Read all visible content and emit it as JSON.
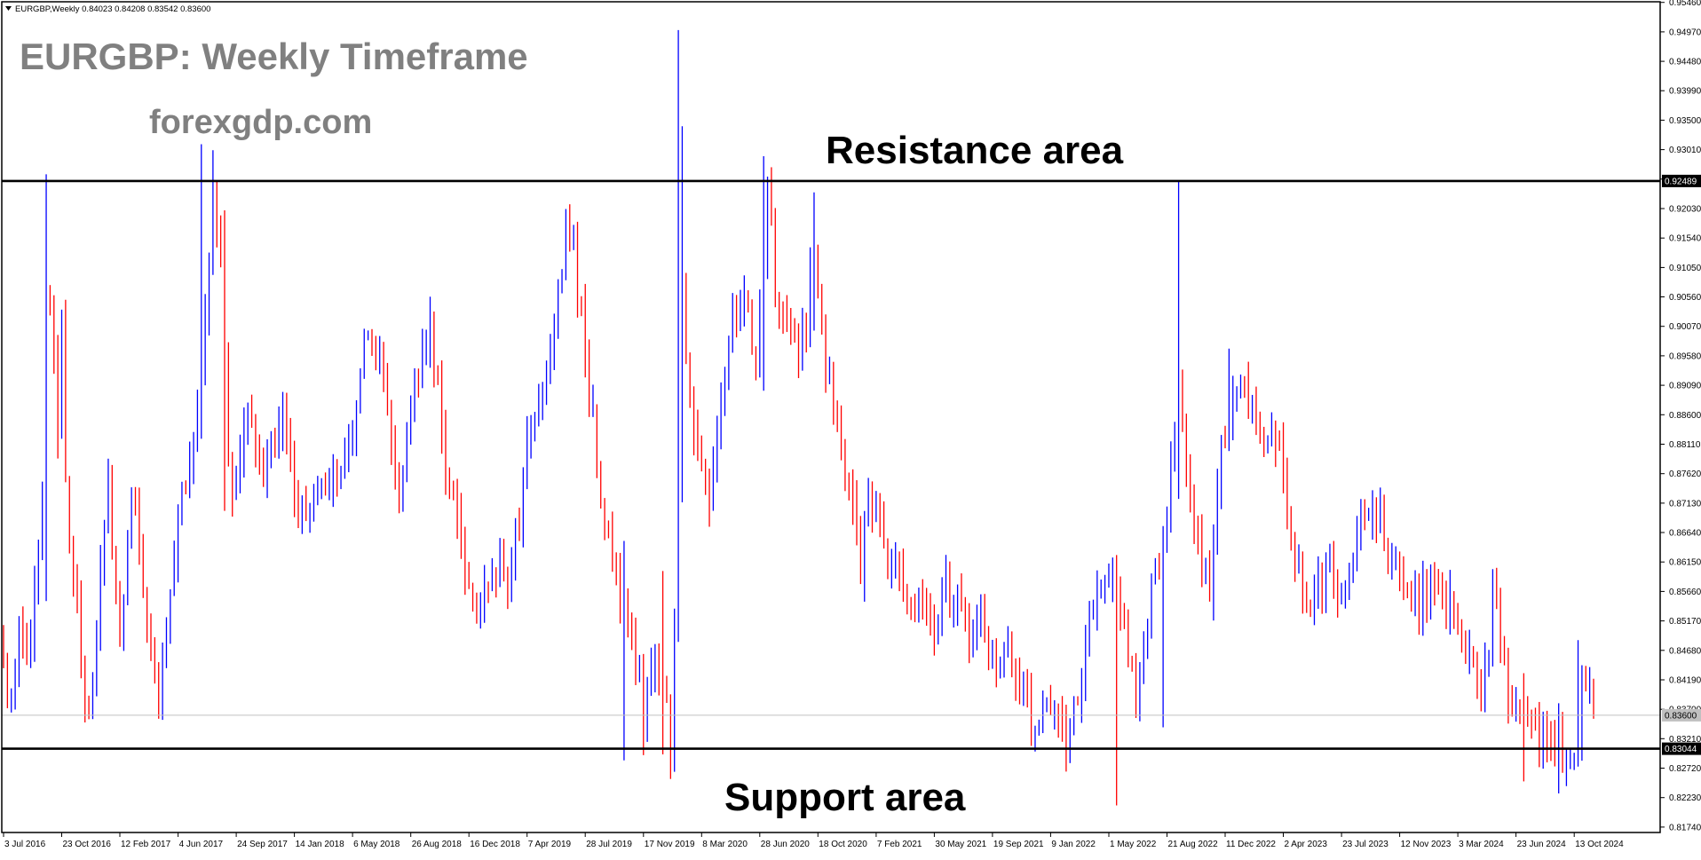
{
  "header": {
    "symbol_line": "EURGBP,Weekly  0.84023 0.84208 0.83542 0.83600"
  },
  "overlay": {
    "title": "EURGBP: Weekly Timeframe",
    "site": "forexgdp.com",
    "resistance_label": "Resistance area",
    "support_label": "Support area"
  },
  "colors": {
    "bull": "#0000ff",
    "bear": "#ff0000",
    "frame": "#000000",
    "overlay_text": "#808080",
    "label_text": "#000000",
    "price_line": "#c0c0c0"
  },
  "chart_data": {
    "type": "candlestick",
    "title": "EURGBP: Weekly Timeframe",
    "xlabel": "",
    "ylabel": "",
    "ylim": [
      0.8165,
      0.9547
    ],
    "y_ticks": [
      "0.95460",
      "0.94970",
      "0.94480",
      "0.93990",
      "0.93500",
      "0.93010",
      "0.92520",
      "0.92030",
      "0.91540",
      "0.91050",
      "0.90560",
      "0.90070",
      "0.89580",
      "0.89090",
      "0.88600",
      "0.88110",
      "0.87620",
      "0.87130",
      "0.86640",
      "0.86150",
      "0.85660",
      "0.85170",
      "0.84680",
      "0.84190",
      "0.83700",
      "0.83210",
      "0.82720",
      "0.82230",
      "0.81740"
    ],
    "x_ticks": [
      "3 Jul 2016",
      "23 Oct 2016",
      "12 Feb 2017",
      "4 Jun 2017",
      "24 Sep 2017",
      "14 Jan 2018",
      "6 May 2018",
      "26 Aug 2018",
      "16 Dec 2018",
      "7 Apr 2019",
      "28 Jul 2019",
      "17 Nov 2019",
      "8 Mar 2020",
      "28 Jun 2020",
      "18 Oct 2020",
      "7 Feb 2021",
      "30 May 2021",
      "19 Sep 2021",
      "9 Jan 2022",
      "1 May 2022",
      "21 Aug 2022",
      "11 Dec 2022",
      "2 Apr 2023",
      "23 Jul 2023",
      "12 Nov 2023",
      "3 Mar 2024",
      "23 Jun 2024",
      "13 Oct 2024"
    ],
    "levels": [
      {
        "name": "Resistance area",
        "value": 0.92489,
        "label": "0.92489"
      },
      {
        "name": "Support area",
        "value": 0.83044,
        "label": "0.83044"
      }
    ],
    "current_price": {
      "value": 0.836,
      "label": "0.83600"
    },
    "price_path": [
      [
        0,
        0.845
      ],
      [
        2,
        0.838
      ],
      [
        4,
        0.852
      ],
      [
        6,
        0.845
      ],
      [
        8,
        0.858
      ],
      [
        10,
        0.87
      ],
      [
        11,
        0.91
      ],
      [
        12,
        0.902
      ],
      [
        14,
        0.885
      ],
      [
        15,
        0.9
      ],
      [
        16,
        0.875
      ],
      [
        18,
        0.862
      ],
      [
        20,
        0.845
      ],
      [
        22,
        0.836
      ],
      [
        23,
        0.842
      ],
      [
        25,
        0.86
      ],
      [
        27,
        0.872
      ],
      [
        29,
        0.86
      ],
      [
        30,
        0.85
      ],
      [
        32,
        0.866
      ],
      [
        34,
        0.874
      ],
      [
        35,
        0.86
      ],
      [
        37,
        0.85
      ],
      [
        39,
        0.845
      ],
      [
        40,
        0.838
      ],
      [
        42,
        0.85
      ],
      [
        44,
        0.862
      ],
      [
        46,
        0.872
      ],
      [
        48,
        0.877
      ],
      [
        50,
        0.887
      ],
      [
        52,
        0.9
      ],
      [
        53,
        0.912
      ],
      [
        54,
        0.922
      ],
      [
        55,
        0.916
      ],
      [
        56,
        0.91
      ],
      [
        57,
        0.895
      ],
      [
        58,
        0.88
      ],
      [
        59,
        0.875
      ],
      [
        61,
        0.882
      ],
      [
        62,
        0.888
      ],
      [
        64,
        0.885
      ],
      [
        66,
        0.878
      ],
      [
        68,
        0.876
      ],
      [
        70,
        0.882
      ],
      [
        72,
        0.889
      ],
      [
        74,
        0.878
      ],
      [
        76,
        0.872
      ],
      [
        78,
        0.866
      ],
      [
        80,
        0.872
      ],
      [
        82,
        0.876
      ],
      [
        84,
        0.872
      ],
      [
        86,
        0.876
      ],
      [
        88,
        0.878
      ],
      [
        90,
        0.882
      ],
      [
        92,
        0.89
      ],
      [
        94,
        0.9
      ],
      [
        96,
        0.895
      ],
      [
        98,
        0.89
      ],
      [
        100,
        0.882
      ],
      [
        102,
        0.876
      ],
      [
        104,
        0.88
      ],
      [
        106,
        0.89
      ],
      [
        108,
        0.898
      ],
      [
        110,
        0.9
      ],
      [
        112,
        0.892
      ],
      [
        114,
        0.878
      ],
      [
        116,
        0.87
      ],
      [
        118,
        0.862
      ],
      [
        120,
        0.855
      ],
      [
        122,
        0.852
      ],
      [
        124,
        0.858
      ],
      [
        126,
        0.862
      ],
      [
        128,
        0.86
      ],
      [
        130,
        0.856
      ],
      [
        132,
        0.866
      ],
      [
        134,
        0.876
      ],
      [
        136,
        0.882
      ],
      [
        138,
        0.888
      ],
      [
        140,
        0.894
      ],
      [
        142,
        0.9
      ],
      [
        144,
        0.912
      ],
      [
        145,
        0.922
      ],
      [
        146,
        0.918
      ],
      [
        148,
        0.906
      ],
      [
        150,
        0.895
      ],
      [
        152,
        0.884
      ],
      [
        154,
        0.874
      ],
      [
        156,
        0.864
      ],
      [
        158,
        0.858
      ],
      [
        160,
        0.852
      ],
      [
        162,
        0.847
      ],
      [
        164,
        0.845
      ],
      [
        165,
        0.832
      ],
      [
        166,
        0.838
      ],
      [
        168,
        0.848
      ],
      [
        170,
        0.842
      ],
      [
        171,
        0.838
      ],
      [
        172,
        0.832
      ],
      [
        173,
        0.85
      ],
      [
        174,
        0.875
      ],
      [
        175,
        0.905
      ],
      [
        176,
        0.895
      ],
      [
        178,
        0.885
      ],
      [
        180,
        0.876
      ],
      [
        182,
        0.872
      ],
      [
        184,
        0.885
      ],
      [
        186,
        0.895
      ],
      [
        188,
        0.9
      ],
      [
        190,
        0.905
      ],
      [
        192,
        0.902
      ],
      [
        194,
        0.898
      ],
      [
        196,
        0.91
      ],
      [
        197,
        0.922
      ],
      [
        199,
        0.908
      ],
      [
        201,
        0.9
      ],
      [
        203,
        0.9
      ],
      [
        205,
        0.896
      ],
      [
        207,
        0.9
      ],
      [
        209,
        0.915
      ],
      [
        211,
        0.9
      ],
      [
        213,
        0.89
      ],
      [
        215,
        0.882
      ],
      [
        217,
        0.876
      ],
      [
        219,
        0.868
      ],
      [
        221,
        0.862
      ],
      [
        223,
        0.87
      ],
      [
        225,
        0.872
      ],
      [
        227,
        0.865
      ],
      [
        229,
        0.862
      ],
      [
        231,
        0.86
      ],
      [
        233,
        0.856
      ],
      [
        235,
        0.856
      ],
      [
        237,
        0.855
      ],
      [
        239,
        0.85
      ],
      [
        241,
        0.855
      ],
      [
        243,
        0.858
      ],
      [
        245,
        0.852
      ],
      [
        247,
        0.856
      ],
      [
        249,
        0.848
      ],
      [
        251,
        0.853
      ],
      [
        253,
        0.848
      ],
      [
        255,
        0.845
      ],
      [
        257,
        0.845
      ],
      [
        259,
        0.848
      ],
      [
        261,
        0.842
      ],
      [
        263,
        0.84
      ],
      [
        265,
        0.835
      ],
      [
        267,
        0.832
      ],
      [
        269,
        0.838
      ],
      [
        270,
        0.834
      ],
      [
        272,
        0.835
      ],
      [
        274,
        0.83
      ],
      [
        276,
        0.838
      ],
      [
        278,
        0.842
      ],
      [
        280,
        0.852
      ],
      [
        282,
        0.858
      ],
      [
        284,
        0.855
      ],
      [
        286,
        0.862
      ],
      [
        288,
        0.855
      ],
      [
        290,
        0.845
      ],
      [
        292,
        0.842
      ],
      [
        294,
        0.848
      ],
      [
        296,
        0.856
      ],
      [
        298,
        0.862
      ],
      [
        300,
        0.87
      ],
      [
        302,
        0.882
      ],
      [
        303,
        0.89
      ],
      [
        305,
        0.875
      ],
      [
        307,
        0.868
      ],
      [
        309,
        0.862
      ],
      [
        311,
        0.858
      ],
      [
        313,
        0.875
      ],
      [
        315,
        0.884
      ],
      [
        317,
        0.888
      ],
      [
        319,
        0.89
      ],
      [
        321,
        0.886
      ],
      [
        323,
        0.884
      ],
      [
        325,
        0.88
      ],
      [
        327,
        0.884
      ],
      [
        329,
        0.878
      ],
      [
        331,
        0.87
      ],
      [
        333,
        0.862
      ],
      [
        335,
        0.858
      ],
      [
        337,
        0.856
      ],
      [
        339,
        0.856
      ],
      [
        341,
        0.86
      ],
      [
        343,
        0.858
      ],
      [
        345,
        0.856
      ],
      [
        347,
        0.86
      ],
      [
        349,
        0.864
      ],
      [
        351,
        0.868
      ],
      [
        353,
        0.872
      ],
      [
        355,
        0.868
      ],
      [
        357,
        0.862
      ],
      [
        359,
        0.86
      ],
      [
        361,
        0.857
      ],
      [
        363,
        0.855
      ],
      [
        365,
        0.855
      ],
      [
        367,
        0.856
      ],
      [
        369,
        0.855
      ],
      [
        371,
        0.856
      ],
      [
        373,
        0.857
      ],
      [
        375,
        0.853
      ],
      [
        377,
        0.848
      ],
      [
        379,
        0.842
      ],
      [
        381,
        0.842
      ],
      [
        383,
        0.846
      ],
      [
        384,
        0.856
      ],
      [
        386,
        0.848
      ],
      [
        388,
        0.84
      ],
      [
        390,
        0.838
      ],
      [
        392,
        0.836
      ],
      [
        394,
        0.832
      ],
      [
        396,
        0.834
      ],
      [
        398,
        0.83
      ],
      [
        400,
        0.832
      ],
      [
        402,
        0.83
      ],
      [
        404,
        0.828
      ],
      [
        406,
        0.83
      ],
      [
        407,
        0.842
      ],
      [
        409,
        0.84
      ],
      [
        410,
        0.836
      ]
    ],
    "spikes": [
      [
        11,
        0.926,
        0.855
      ],
      [
        51,
        0.931,
        0.882
      ],
      [
        54,
        0.93,
        0.915
      ],
      [
        57,
        0.92,
        0.87
      ],
      [
        160,
        0.865,
        0.8285
      ],
      [
        170,
        0.86,
        0.8295
      ],
      [
        174,
        0.95,
        0.87
      ],
      [
        175,
        0.934,
        0.88
      ],
      [
        196,
        0.929,
        0.89
      ],
      [
        209,
        0.923,
        0.9
      ],
      [
        287,
        0.84,
        0.821
      ],
      [
        299,
        0.8395,
        0.834
      ],
      [
        303,
        0.925,
        0.872
      ],
      [
        316,
        0.897,
        0.884
      ],
      [
        378,
        0.838,
        0.848
      ],
      [
        392,
        0.843,
        0.825
      ],
      [
        401,
        0.838,
        0.823
      ],
      [
        406,
        0.8485,
        0.84
      ]
    ],
    "candle_count": 411
  }
}
